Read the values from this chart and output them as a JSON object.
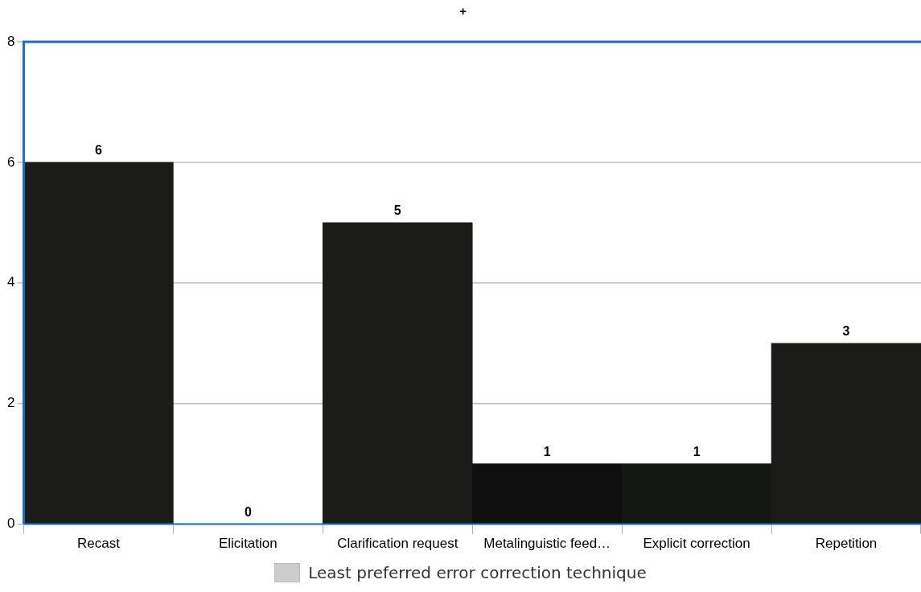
{
  "chart_data": {
    "type": "bar",
    "title": "+",
    "categories": [
      "Recast",
      "Elicitation",
      "Clarification request",
      "Metalinguistic feed…",
      "Explicit correction",
      "Repetition"
    ],
    "series": [
      {
        "name": "Least preferred error correction technique",
        "color": "#cccccc",
        "colors": [
          "#1b1b19",
          "#1b1b19",
          "#1b1b19",
          "#0f0f0f",
          "#151715",
          "#1b1b19"
        ],
        "values": [
          6,
          0,
          5,
          1,
          1,
          3
        ]
      }
    ],
    "ylim": [
      0,
      8
    ],
    "yticks": [
      0,
      2,
      4,
      6,
      8
    ],
    "grid": "y",
    "legend": "bottom",
    "data_labels": true
  }
}
